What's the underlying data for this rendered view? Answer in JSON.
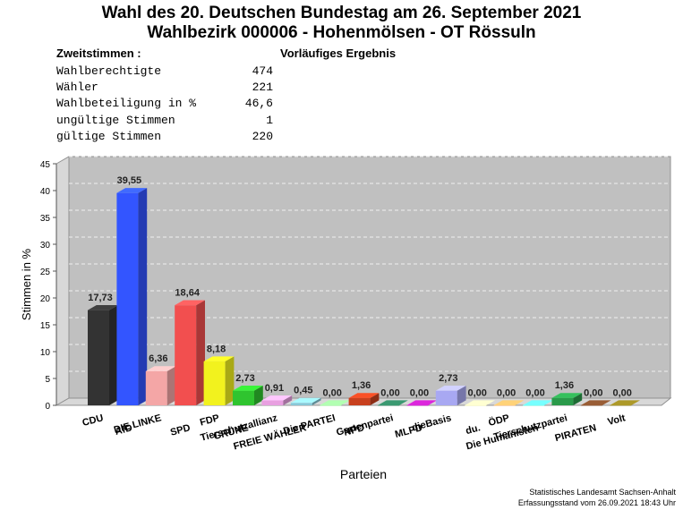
{
  "header": {
    "title_line1": "Wahl des 20. Deutschen Bundestag am 26. September 2021",
    "title_line2": "Wahlbezirk 000006 - Hohenmölsen - OT Rössuln",
    "stats_heading": "Zweitstimmen :",
    "preliminary": "Vorläufiges Ergebnis"
  },
  "stats": [
    {
      "label": "Wahlberechtigte",
      "value": "474"
    },
    {
      "label": "Wähler",
      "value": "221"
    },
    {
      "label": "Wahlbeteiligung in %",
      "value": "46,6"
    },
    {
      "label": "ungültige Stimmen",
      "value": "1"
    },
    {
      "label": "gültige Stimmen",
      "value": "220"
    }
  ],
  "chart_data": {
    "type": "bar",
    "xlabel": "Parteien",
    "ylabel": "Stimmen in %",
    "ylim": [
      0,
      45
    ],
    "yticks": [
      "0",
      "5",
      "10",
      "15",
      "20",
      "25",
      "30",
      "35",
      "40",
      "45"
    ],
    "grid": true,
    "categories": [
      "CDU",
      "AfD",
      "DIE LINKE",
      "SPD",
      "FDP",
      "GRÜNE",
      "Tierschutzallianz",
      "FREIE WÄHLER",
      "Die PARTEI",
      "NPD",
      "Gartenpartei",
      "MLPD",
      "dieBasis",
      "du.",
      "ÖDP",
      "Die Humanisten",
      "Tierschutzpartei",
      "PIRATEN",
      "Volt"
    ],
    "values": [
      17.73,
      39.55,
      6.36,
      18.64,
      8.18,
      2.73,
      0.91,
      0.45,
      0.0,
      1.36,
      0.0,
      0.0,
      2.73,
      0.0,
      0.0,
      0.0,
      1.36,
      0.0,
      0.0
    ],
    "value_labels": [
      "17,73",
      "39,55",
      "6,36",
      "18,64",
      "8,18",
      "2,73",
      "0,91",
      "0,45",
      "0,00",
      "1,36",
      "0,00",
      "0,00",
      "2,73",
      "0,00",
      "0,00",
      "0,00",
      "1,36",
      "0,00",
      "0,00"
    ],
    "colors": [
      "#333333",
      "#3355ff",
      "#f4a6a6",
      "#f24f4f",
      "#f2f21e",
      "#2fc42f",
      "#e8a0e0",
      "#88c8d8",
      "#8ee88e",
      "#c8401e",
      "#2e7a5a",
      "#b01eb0",
      "#a8a8f2",
      "#f2f2a8",
      "#f2a860",
      "#5ef2d8",
      "#2a9a4a",
      "#7a4a2a",
      "#8a7a20"
    ]
  },
  "footer": {
    "line1": "Statistisches Landesamt Sachsen-Anhalt",
    "line2": "Erfassungsstand vom 26.09.2021 18:43 Uhr"
  }
}
